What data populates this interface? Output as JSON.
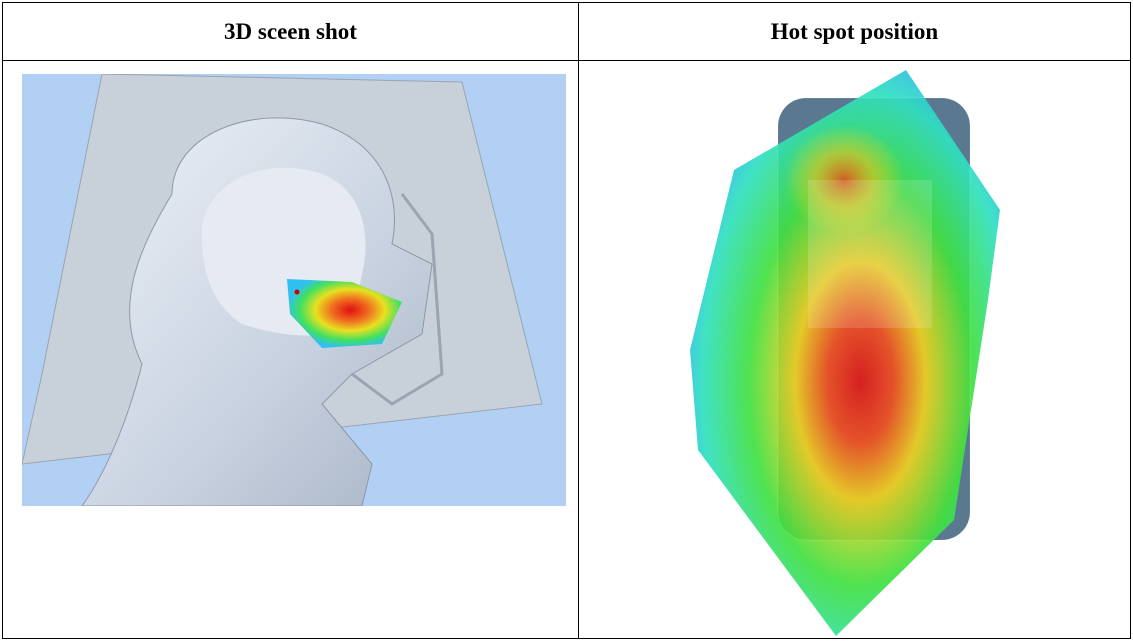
{
  "table": {
    "headers": [
      "3D sceen shot",
      "Hot spot position"
    ]
  }
}
